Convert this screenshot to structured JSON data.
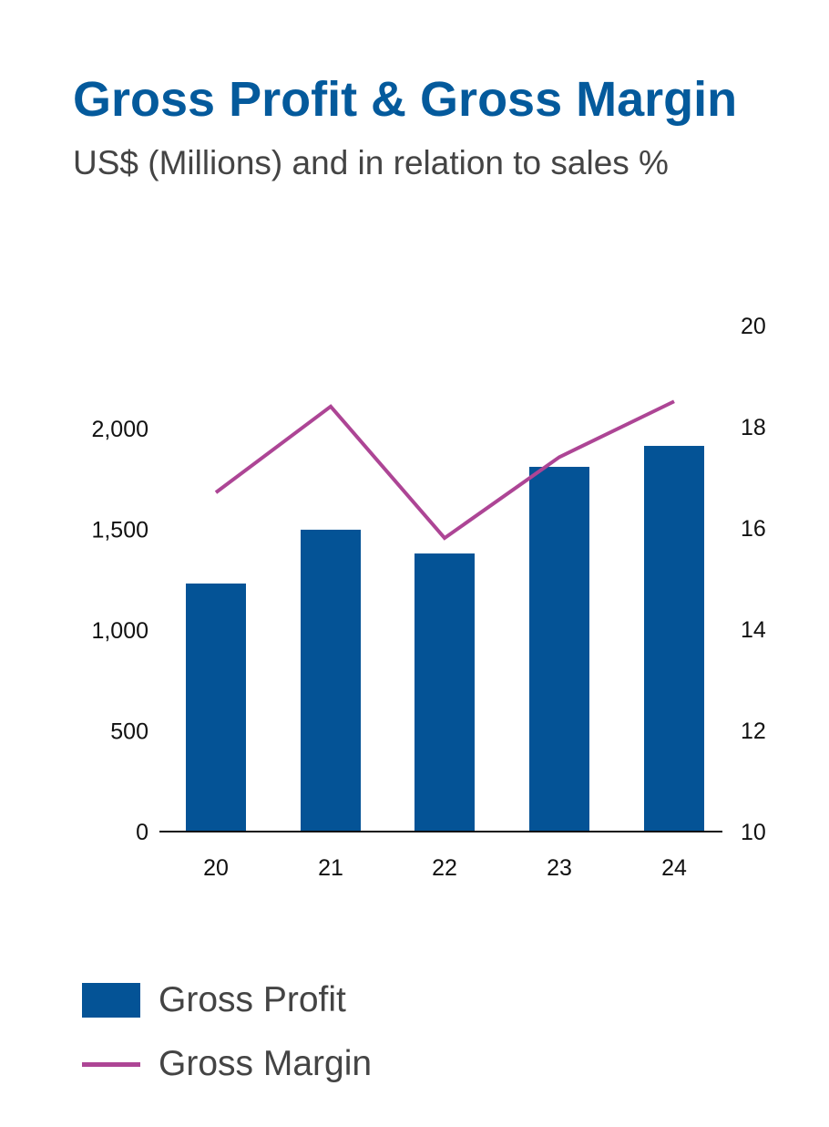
{
  "chart_data": {
    "type": "bar+line",
    "title": "Gross Profit & Gross Margin",
    "subtitle": "US$ (Millions) and in relation to sales %",
    "categories": [
      "20",
      "21",
      "22",
      "23",
      "24"
    ],
    "series": [
      {
        "name": "Gross Profit",
        "type": "bar",
        "axis": "left",
        "color": "#045396",
        "values": [
          1231,
          1498,
          1380,
          1810,
          1914
        ]
      },
      {
        "name": "Gross Margin",
        "type": "line",
        "axis": "right",
        "color": "#ad4595",
        "values": [
          16.7,
          18.4,
          15.8,
          17.4,
          18.5
        ]
      }
    ],
    "left_axis": {
      "ylim": [
        0,
        2000
      ],
      "ticks": [
        "0",
        "500",
        "1,000",
        "1,500",
        "2,000"
      ]
    },
    "right_axis": {
      "ylim": [
        10,
        20
      ],
      "ticks": [
        "10",
        "12",
        "14",
        "16",
        "18",
        "20"
      ]
    },
    "grid": false,
    "legend": "bottom-left"
  }
}
